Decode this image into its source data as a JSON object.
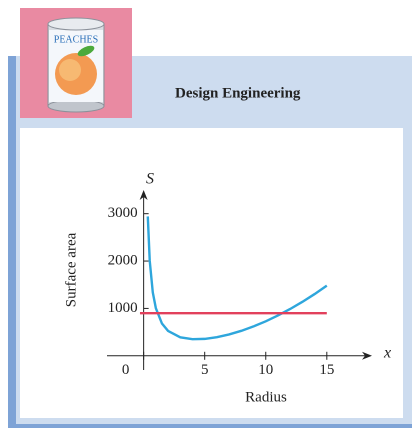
{
  "badge": {
    "label": "PEACHES"
  },
  "header": {
    "title": "Design Engineering"
  },
  "chart_data": {
    "type": "line",
    "xlabel": "Radius",
    "ylabel": "Surface area",
    "x_symbol": "x",
    "y_symbol": "S",
    "xlim": [
      -3,
      18.7
    ],
    "ylim": [
      -300,
      3500
    ],
    "xticks": [
      0,
      5,
      10,
      15
    ],
    "yticks": [
      1000,
      2000,
      3000
    ],
    "series": [
      {
        "color": "#2ea6dc",
        "x": [
          0.34,
          0.5,
          0.75,
          1,
          1.5,
          2,
          3,
          4,
          5,
          6,
          7,
          8,
          9,
          10,
          11,
          12,
          13,
          14,
          15
        ],
        "values": [
          2942,
          2002,
          1337,
          1006,
          681,
          525,
          390,
          351,
          357,
          393,
          451,
          527,
          620,
          728,
          851,
          988,
          1139,
          1303,
          1481
        ]
      },
      {
        "color": "#e2405c",
        "x": [
          -0.3,
          15
        ],
        "values": [
          900,
          900
        ]
      }
    ]
  }
}
